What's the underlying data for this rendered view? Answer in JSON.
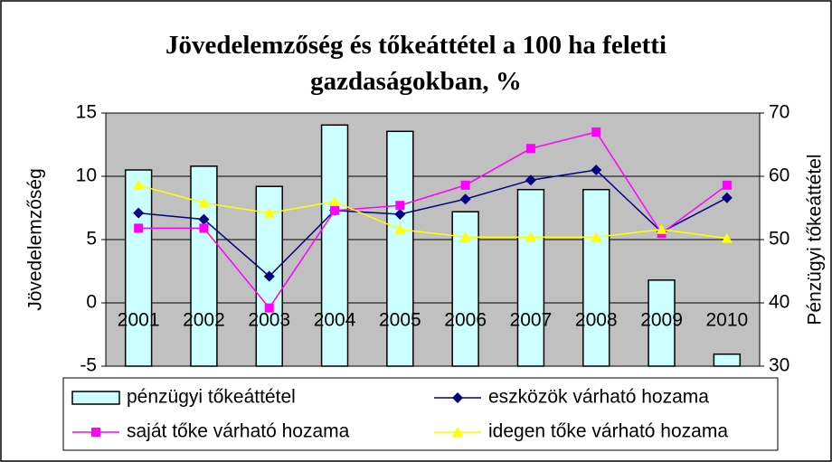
{
  "chart_data": {
    "type": "combo",
    "title": "Jövedelemzőség és tőkeáttétel a 100 ha feletti gazdaságokban, %",
    "y_label": "Jövedelemzőség",
    "y2_label": "Pénzügyi tőkeáttétel",
    "categories": [
      "2001",
      "2002",
      "2003",
      "2004",
      "2005",
      "2006",
      "2007",
      "2008",
      "2009",
      "2010"
    ],
    "ylim": [
      -5,
      15
    ],
    "yticks": [
      -5,
      0,
      5,
      10,
      15
    ],
    "y2lim": [
      30,
      70
    ],
    "y2ticks": [
      30,
      40,
      50,
      60,
      70
    ],
    "grid": true,
    "series": [
      {
        "name": "pénzügyi tőkeáttétel",
        "type": "bar",
        "axis": "y2",
        "color": "#ccffff",
        "values": [
          61,
          61.6,
          58.4,
          68.1,
          67.1,
          54.4,
          57.9,
          57.9,
          43.6,
          31.9
        ]
      },
      {
        "name": "eszközök várható hozama",
        "type": "line",
        "marker": "diamond",
        "color": "#000080",
        "values": [
          7.1,
          6.6,
          2.1,
          7.3,
          7.0,
          8.2,
          9.7,
          10.5,
          5.6,
          8.3
        ]
      },
      {
        "name": "saját tőke várható hozama",
        "type": "line",
        "marker": "square",
        "color": "#ff00ff",
        "values": [
          5.9,
          5.9,
          -0.4,
          7.3,
          7.7,
          9.3,
          12.2,
          13.5,
          5.5,
          9.3
        ]
      },
      {
        "name": "idegen tőke várható hozama",
        "type": "line",
        "marker": "triangle",
        "color": "#ffff00",
        "values": [
          9.3,
          7.9,
          7.1,
          8.0,
          5.8,
          5.2,
          5.2,
          5.2,
          5.8,
          5.1
        ]
      }
    ]
  }
}
